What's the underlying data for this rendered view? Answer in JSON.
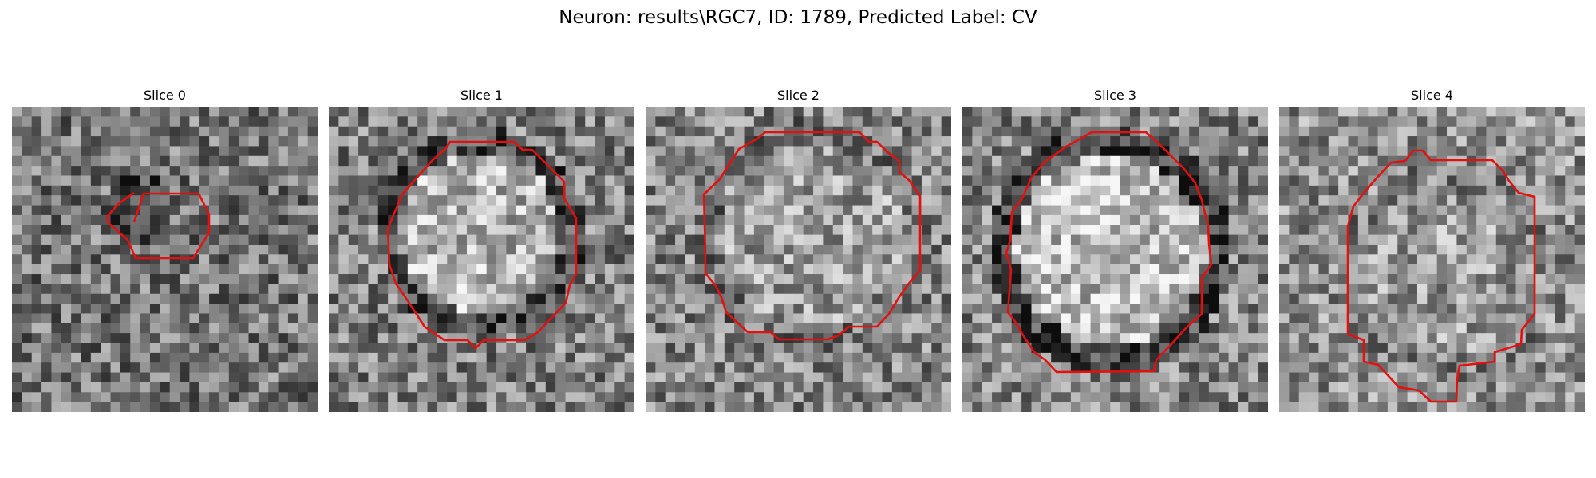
{
  "figure": {
    "title": "Neuron: results\\RGC7, ID: 1789, Predicted Label: CV",
    "contour_color": "#e41010"
  },
  "slices": [
    {
      "title": "Slice 0",
      "image": "noisy-grayscale-micrograph"
    },
    {
      "title": "Slice 1",
      "image": "noisy-grayscale-micrograph"
    },
    {
      "title": "Slice 2",
      "image": "noisy-grayscale-micrograph"
    },
    {
      "title": "Slice 3",
      "image": "noisy-grayscale-micrograph"
    },
    {
      "title": "Slice 4",
      "image": "noisy-grayscale-micrograph"
    }
  ]
}
